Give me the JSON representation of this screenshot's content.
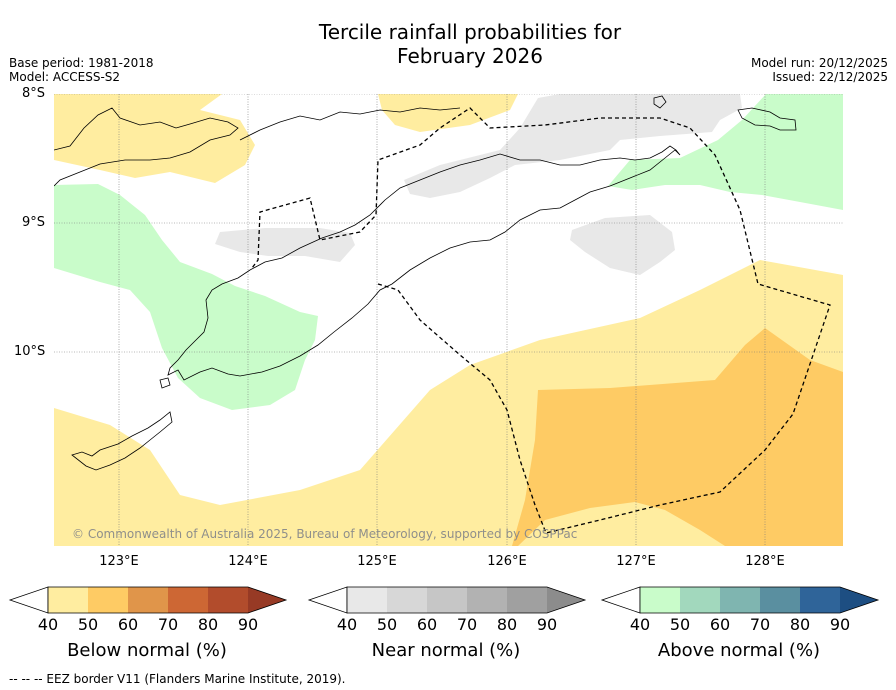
{
  "title_line1": "Tercile rainfall probabilities for",
  "title_line2": "February 2026",
  "base_period": "Base period: 1981-2018",
  "model": "Model: ACCESS-S2",
  "model_run": "Model run: 20/12/2025",
  "issued": "Issued: 22/12/2025",
  "latitude_labels": [
    "8°S",
    "9°S",
    "10°S"
  ],
  "longitude_labels": [
    "123°E",
    "124°E",
    "125°E",
    "126°E",
    "127°E",
    "128°E"
  ],
  "copyright": "© Commonwealth of Australia 2025, Bureau of Meteorology, supported by COSPPac",
  "colorbars": {
    "below": {
      "title": "Below normal (%)",
      "ticks": [
        "40",
        "50",
        "60",
        "70",
        "80",
        "90"
      ],
      "colors": [
        "#ffeda0",
        "#fecb64",
        "#e0954a",
        "#cd6734",
        "#b24c2c",
        "#973a25"
      ]
    },
    "near": {
      "title": "Near normal (%)",
      "ticks": [
        "40",
        "50",
        "60",
        "70",
        "80",
        "90"
      ],
      "colors": [
        "#e8e8e8",
        "#d7d7d7",
        "#c6c6c6",
        "#b2b2b2",
        "#a0a0a0",
        "#8c8c8c"
      ]
    },
    "above": {
      "title": "Above normal (%)",
      "ticks": [
        "40",
        "50",
        "60",
        "70",
        "80",
        "90"
      ],
      "colors": [
        "#c9fcca",
        "#a2d8bd",
        "#7fb5b0",
        "#5a8fa0",
        "#2f6499",
        "#1d4e82"
      ]
    }
  },
  "footer": "--  --  -- EEZ border V11 (Flanders Marine Institute, 2019)."
}
